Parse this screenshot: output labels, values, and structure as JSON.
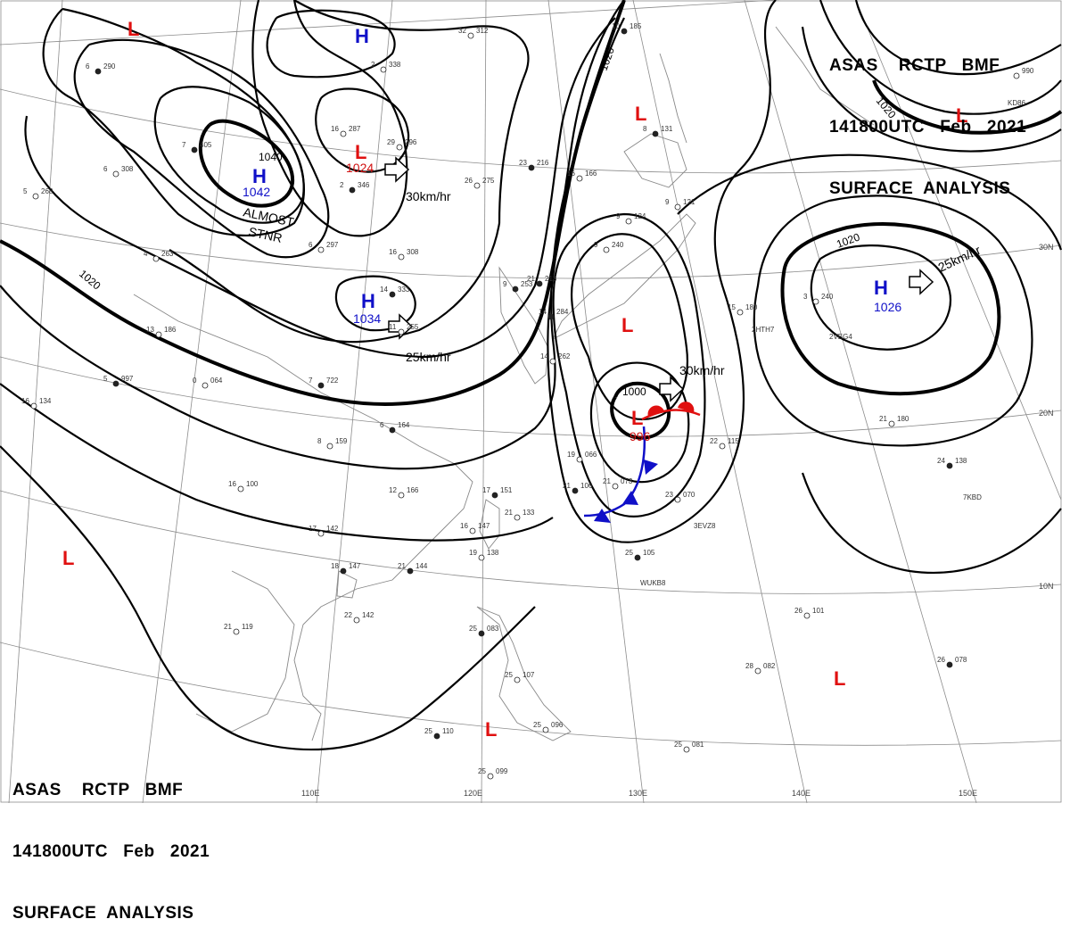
{
  "header": {
    "line1": "ASAS    RCTP   BMF",
    "line2": "141800UTC   Feb   2021",
    "line3": "SURFACE  ANALYSIS"
  },
  "colors": {
    "high": "#1010c8",
    "low": "#e01010",
    "isobar": "#000000",
    "grid": "#8c8c8c",
    "coast": "#888888"
  },
  "highs": [
    {
      "letter": "H",
      "pressure": "1042"
    },
    {
      "letter": "H",
      "pressure": ""
    },
    {
      "letter": "H",
      "pressure": "1034"
    },
    {
      "letter": "H",
      "pressure": "1026"
    }
  ],
  "lows": [
    {
      "letter": "L",
      "pressure": "1024"
    },
    {
      "letter": "L",
      "pressure": "996"
    },
    {
      "letter": "L",
      "pressure": ""
    },
    {
      "letter": "L",
      "pressure": ""
    },
    {
      "letter": "L",
      "pressure": ""
    },
    {
      "letter": "L",
      "pressure": ""
    },
    {
      "letter": "L",
      "pressure": ""
    },
    {
      "letter": "L",
      "pressure": ""
    },
    {
      "letter": "L",
      "pressure": ""
    }
  ],
  "isobar_labels": {
    "i1040": "1040",
    "i1020a": "1020",
    "i1020b": "1020",
    "i1020c": "1020",
    "i1020d": "1020",
    "i1000": "1000"
  },
  "movements": {
    "m1": "30km/hr",
    "m2": "25km/hr",
    "m3": "30km/hr",
    "m4": "25km/hr"
  },
  "remark": {
    "line1": "ALMOST",
    "line2": "STNR"
  },
  "lon_ticks": {
    "t110": "110E",
    "t120": "120E",
    "t130": "130E",
    "t140": "140E",
    "t150": "150E"
  },
  "lat_ticks": {
    "t30": "30N",
    "t20": "20N",
    "t10": "10N"
  },
  "stations": [
    {
      "pressure": "290",
      "temp": "6"
    },
    {
      "pressure": "308",
      "temp": "6"
    },
    {
      "pressure": "268",
      "temp": "5"
    },
    {
      "pressure": "405",
      "temp": "7"
    },
    {
      "pressure": "263",
      "temp": "4"
    },
    {
      "pressure": "186",
      "temp": "13"
    },
    {
      "pressure": "997",
      "temp": "5"
    },
    {
      "pressure": "064",
      "temp": "0"
    },
    {
      "pressure": "134",
      "temp": "16"
    },
    {
      "pressure": "722",
      "temp": "7"
    },
    {
      "pressure": "338",
      "temp": "2"
    },
    {
      "pressure": "287",
      "temp": "16"
    },
    {
      "pressure": "346",
      "temp": "2"
    },
    {
      "pressure": "297",
      "temp": "6"
    },
    {
      "pressure": "308",
      "temp": "16"
    },
    {
      "pressure": "333",
      "temp": "14"
    },
    {
      "pressure": "296",
      "temp": "29"
    },
    {
      "pressure": "275",
      "temp": "26"
    },
    {
      "pressure": "216",
      "temp": "23"
    },
    {
      "pressure": "166",
      "temp": "16"
    },
    {
      "pressure": "312",
      "temp": "32"
    },
    {
      "pressure": "185",
      "temp": "10"
    },
    {
      "pressure": "255",
      "temp": "11"
    },
    {
      "pressure": "159",
      "temp": "8"
    },
    {
      "pressure": "164",
      "temp": "6"
    },
    {
      "pressure": "100",
      "temp": "16"
    },
    {
      "pressure": "166",
      "temp": "12"
    },
    {
      "pressure": "151",
      "temp": "17"
    },
    {
      "pressure": "133",
      "temp": "21"
    },
    {
      "pressure": "142",
      "temp": "17"
    },
    {
      "pressure": "147",
      "temp": "18"
    },
    {
      "pressure": "147",
      "temp": "16"
    },
    {
      "pressure": "138",
      "temp": "19"
    },
    {
      "pressure": "144",
      "temp": "21"
    },
    {
      "pressure": "142",
      "temp": "22"
    },
    {
      "pressure": "119",
      "temp": "21"
    },
    {
      "pressure": "083",
      "temp": "25"
    },
    {
      "pressure": "107",
      "temp": "25"
    },
    {
      "pressure": "096",
      "temp": "25"
    },
    {
      "pressure": "110",
      "temp": "25"
    },
    {
      "pressure": "099",
      "temp": "25"
    },
    {
      "pressure": "073",
      "temp": "21"
    },
    {
      "pressure": "106",
      "temp": "21"
    },
    {
      "pressure": "066",
      "temp": "19"
    },
    {
      "pressure": "070",
      "temp": "23"
    },
    {
      "pressure": "105",
      "temp": "25"
    },
    {
      "pressure": "115",
      "temp": "22"
    },
    {
      "pressure": "180",
      "temp": "21"
    },
    {
      "pressure": "138",
      "temp": "24"
    },
    {
      "pressure": "180",
      "temp": "15"
    },
    {
      "pressure": "240",
      "temp": "3"
    },
    {
      "pressure": "131",
      "temp": "8"
    },
    {
      "pressure": "121",
      "temp": "9"
    },
    {
      "pressure": "124",
      "temp": "9"
    },
    {
      "pressure": "213",
      "temp": "21"
    },
    {
      "pressure": "101",
      "temp": "26"
    },
    {
      "pressure": "082",
      "temp": "28"
    },
    {
      "pressure": "078",
      "temp": "26"
    },
    {
      "pressure": "081",
      "temp": "25"
    },
    {
      "pressure": "990",
      "temp": ""
    },
    {
      "pressure": "284",
      "temp": "14"
    },
    {
      "pressure": "262",
      "temp": "14"
    },
    {
      "pressure": "240",
      "temp": "9"
    },
    {
      "pressure": "253",
      "temp": "9"
    }
  ],
  "ship_ids": {
    "s1": "3EVZ8",
    "s2": "WUKB8",
    "s3": "7KBD",
    "s4": "KD86",
    "s5": "2HTH7",
    "s6": "2VEG4"
  }
}
